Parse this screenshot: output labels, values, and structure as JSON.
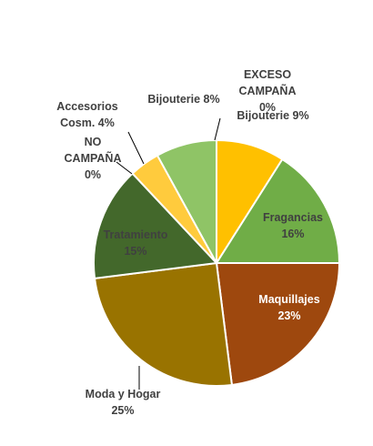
{
  "chart_data": {
    "type": "pie",
    "title": "",
    "slices": [
      {
        "label": "Bijouterie",
        "value": 9,
        "pct_text": "9%",
        "color": "#FFC000"
      },
      {
        "label": "Fragancias",
        "value": 16,
        "pct_text": "16%",
        "color": "#70AD47"
      },
      {
        "label": "Maquillajes",
        "value": 23,
        "pct_text": "23%",
        "color": "#9E480E"
      },
      {
        "label": "Moda y Hogar",
        "value": 25,
        "pct_text": "25%",
        "color": "#997300"
      },
      {
        "label": "Tratamiento",
        "value": 15,
        "pct_text": "15%",
        "color": "#43682B"
      },
      {
        "label": "NO CAMPAÑA",
        "value": 0,
        "pct_text": "0%",
        "color": "#FFC000"
      },
      {
        "label": "Accesorios Cosm.",
        "value": 4,
        "pct_text": "4%",
        "color": "#FFCB3D"
      },
      {
        "label": "Bijouterie",
        "value": 8,
        "pct_text": "8%",
        "color": "#8FC466"
      },
      {
        "label": "EXCESO CAMPAÑA",
        "value": 0,
        "pct_text": "0%",
        "color": "#FFC000"
      }
    ]
  }
}
